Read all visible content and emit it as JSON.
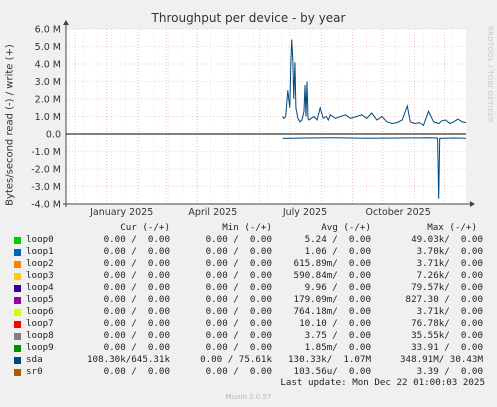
{
  "chart_data": {
    "type": "line",
    "title": "Throughput per device - by year",
    "ylabel": "Bytes/second read (-) / write (+)",
    "ylim": [
      -4000000,
      6000000
    ],
    "y_ticks": [
      "6.0 M",
      "5.0 M",
      "4.0 M",
      "3.0 M",
      "2.0 M",
      "1.0 M",
      "0.0",
      "-1.0 M",
      "-2.0 M",
      "-3.0 M",
      "-4.0 M"
    ],
    "x_ticks": [
      "January 2025",
      "April 2025",
      "July 2025",
      "October 2025"
    ],
    "grid": true,
    "series": [
      {
        "name": "sda",
        "direction": "write",
        "x": [
          "2025-06-24",
          "2025-06-25",
          "2025-06-27",
          "2025-06-29",
          "2025-07-01",
          "2025-07-02",
          "2025-07-03",
          "2025-07-04",
          "2025-07-05",
          "2025-07-06",
          "2025-07-07",
          "2025-07-09",
          "2025-07-11",
          "2025-07-13",
          "2025-07-15",
          "2025-07-16",
          "2025-07-17",
          "2025-07-18",
          "2025-07-19",
          "2025-07-20",
          "2025-07-22",
          "2025-07-25",
          "2025-07-28",
          "2025-07-31",
          "2025-08-03",
          "2025-08-06",
          "2025-08-08",
          "2025-08-10",
          "2025-08-15",
          "2025-08-20",
          "2025-08-25",
          "2025-08-30",
          "2025-09-05",
          "2025-09-10",
          "2025-09-15",
          "2025-09-20",
          "2025-09-25",
          "2025-09-30",
          "2025-10-05",
          "2025-10-10",
          "2025-10-15",
          "2025-10-20",
          "2025-10-25",
          "2025-10-28",
          "2025-11-01",
          "2025-11-06",
          "2025-11-10",
          "2025-11-15",
          "2025-11-20",
          "2025-11-25",
          "2025-11-28",
          "2025-12-02",
          "2025-12-06",
          "2025-12-10",
          "2025-12-14",
          "2025-12-18",
          "2025-12-22"
        ],
        "y": [
          1000000,
          900000,
          1000000,
          2500000,
          1500000,
          4000000,
          5400000,
          4200000,
          2000000,
          4100000,
          1500000,
          900000,
          700000,
          800000,
          1300000,
          2800000,
          1000000,
          3000000,
          900000,
          800000,
          900000,
          1000000,
          800000,
          1500000,
          900000,
          1000000,
          800000,
          1100000,
          900000,
          1000000,
          1100000,
          900000,
          1000000,
          1100000,
          900000,
          1200000,
          800000,
          1000000,
          700000,
          600000,
          650000,
          800000,
          1600000,
          700000,
          600000,
          650000,
          500000,
          1300000,
          700000,
          600000,
          750000,
          800000,
          600000,
          700000,
          850000,
          700000,
          650000
        ]
      },
      {
        "name": "sda",
        "direction": "read",
        "x": [
          "2025-06-24",
          "2025-07-15",
          "2025-08-15",
          "2025-09-15",
          "2025-10-15",
          "2025-11-15",
          "2025-11-24",
          "2025-11-25",
          "2025-11-26",
          "2025-12-10",
          "2025-12-22"
        ],
        "y": [
          -250000,
          -230000,
          -220000,
          -240000,
          -230000,
          -220000,
          -230000,
          -3700000,
          -250000,
          -230000,
          -240000
        ]
      },
      {
        "name": "loop0..sr0",
        "direction": "write",
        "x": [
          "2024-11-22",
          "2025-12-22"
        ],
        "y": [
          0,
          0
        ]
      },
      {
        "name": "loop0..sr0",
        "direction": "read",
        "x": [
          "2024-11-22",
          "2025-12-22"
        ],
        "y": [
          0,
          0
        ]
      }
    ]
  },
  "legend": {
    "headers": {
      "cur": "Cur (-/+)",
      "min": "Min (-/+)",
      "avg": "Avg (-/+)",
      "max": "Max (-/+)"
    },
    "rows": [
      {
        "name": "loop0",
        "color": "#00cc00",
        "cur": "0.00 /  0.00",
        "min": "0.00 /  0.00",
        "avg": "5.24 /  0.00",
        "max": "49.03k/  0.00"
      },
      {
        "name": "loop1",
        "color": "#0066b3",
        "cur": "0.00 /  0.00",
        "min": "0.00 /  0.00",
        "avg": "1.06 /  0.00",
        "max": "3.70k/  0.00"
      },
      {
        "name": "loop2",
        "color": "#ff8000",
        "cur": "0.00 /  0.00",
        "min": "0.00 /  0.00",
        "avg": "615.89m/  0.00",
        "max": "3.71k/  0.00"
      },
      {
        "name": "loop3",
        "color": "#ffcc00",
        "cur": "0.00 /  0.00",
        "min": "0.00 /  0.00",
        "avg": "590.84m/  0.00",
        "max": "7.26k/  0.00"
      },
      {
        "name": "loop4",
        "color": "#330099",
        "cur": "0.00 /  0.00",
        "min": "0.00 /  0.00",
        "avg": "9.96 /  0.00",
        "max": "79.57k/  0.00"
      },
      {
        "name": "loop5",
        "color": "#990099",
        "cur": "0.00 /  0.00",
        "min": "0.00 /  0.00",
        "avg": "179.09m/  0.00",
        "max": "827.30 /  0.00"
      },
      {
        "name": "loop6",
        "color": "#ccff00",
        "cur": "0.00 /  0.00",
        "min": "0.00 /  0.00",
        "avg": "764.18m/  0.00",
        "max": "3.71k/  0.00"
      },
      {
        "name": "loop7",
        "color": "#ff0000",
        "cur": "0.00 /  0.00",
        "min": "0.00 /  0.00",
        "avg": "10.10 /  0.00",
        "max": "76.78k/  0.00"
      },
      {
        "name": "loop8",
        "color": "#808080",
        "cur": "0.00 /  0.00",
        "min": "0.00 /  0.00",
        "avg": "3.75 /  0.00",
        "max": "35.55k/  0.00"
      },
      {
        "name": "loop9",
        "color": "#008f00",
        "cur": "0.00 /  0.00",
        "min": "0.00 /  0.00",
        "avg": "1.85m/  0.00",
        "max": "33.91 /  0.00"
      },
      {
        "name": "sda",
        "color": "#00487d",
        "cur": "108.30k/645.31k",
        "min": "0.00 / 75.61k",
        "avg": "130.33k/  1.07M",
        "max": "348.91M/ 30.43M"
      },
      {
        "name": "sr0",
        "color": "#b35a00",
        "cur": "0.00 /  0.00",
        "min": "0.00 /  0.00",
        "avg": "103.56u/  0.00",
        "max": "3.39 /  0.00"
      }
    ]
  },
  "footer": "Last update: Mon Dec 22 01:00:03 2025",
  "watermark": "RRDTOOL / TOBI OETIKER",
  "generator": "Munin 2.0.57"
}
